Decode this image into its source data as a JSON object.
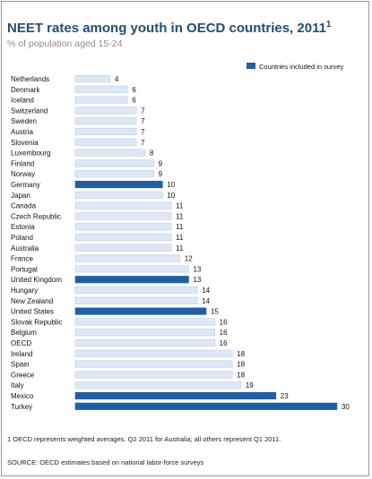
{
  "chart_data": {
    "type": "bar",
    "orientation": "horizontal",
    "title": "NEET rates among youth in OECD countries, 2011",
    "title_footnote_marker": "1",
    "subtitle": "% of population aged 15-24",
    "legend": {
      "label": "Countries included in survey",
      "position": "top-right"
    },
    "categories": [
      "Netherlands",
      "Denmark",
      "Iceland",
      "Switzerland",
      "Sweden",
      "Austria",
      "Slovenia",
      "Luxembourg",
      "Finland",
      "Norway",
      "Germany",
      "Japan",
      "Canada",
      "Czech Republic",
      "Estonia",
      "Poland",
      "Australia",
      "France",
      "Portugal",
      "United Kingdom",
      "Hungary",
      "New Zealand",
      "United States",
      "Slovak Republic",
      "Belgium",
      "OECD",
      "Ireland",
      "Spain",
      "Greece",
      "Italy",
      "Mexico",
      "Turkey"
    ],
    "values": [
      4,
      6,
      6,
      7,
      7,
      7,
      7,
      8,
      9,
      9,
      10,
      10,
      11,
      11,
      11,
      11,
      11,
      12,
      13,
      13,
      14,
      14,
      15,
      16,
      16,
      16,
      18,
      18,
      18,
      19,
      23,
      30
    ],
    "highlighted": [
      "Germany",
      "United Kingdom",
      "United States",
      "Mexico",
      "Turkey"
    ],
    "colors": {
      "highlight": "#1f5fa8",
      "default": "#dce8f5",
      "default_border": "#b9cde4"
    },
    "xlim": [
      0,
      30
    ],
    "grid": false
  },
  "footnote": "1 OECD represents weighted averages. Q2 2011 for Australia; all others represent Q1 2011.",
  "source": "SOURCE: OECD estimates based on national labor-force surveys"
}
